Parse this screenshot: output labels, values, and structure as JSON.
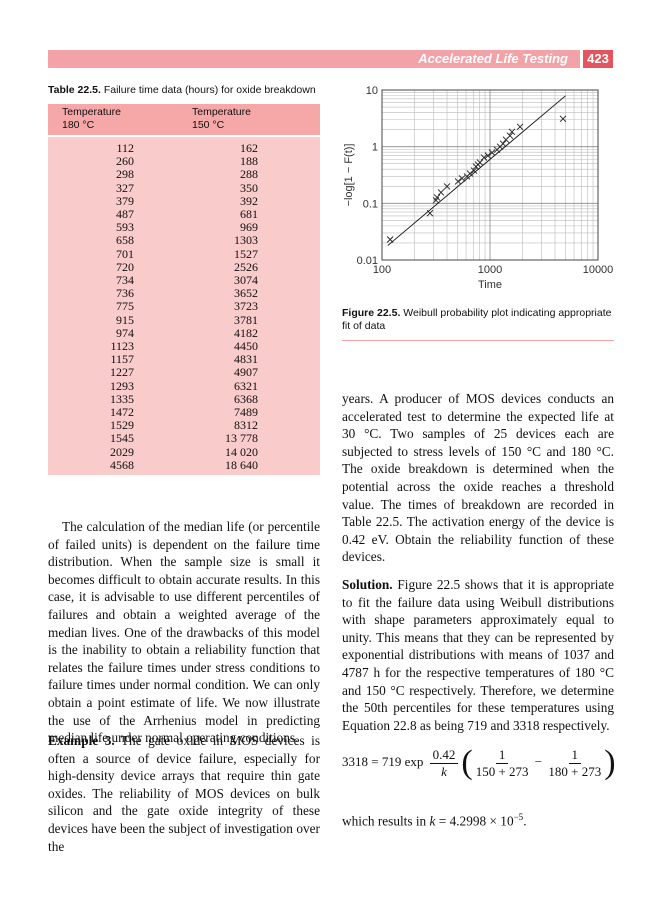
{
  "header": {
    "running_title": "Accelerated Life Testing",
    "page_number": "423"
  },
  "table": {
    "label": "Table 22.5.",
    "caption": "Failure time data (hours) for oxide breakdown",
    "columns": [
      {
        "name": "Temperature",
        "condition": "180 °C"
      },
      {
        "name": "Temperature",
        "condition": "150 °C"
      }
    ],
    "rows": [
      [
        "112",
        "162"
      ],
      [
        "260",
        "188"
      ],
      [
        "298",
        "288"
      ],
      [
        "327",
        "350"
      ],
      [
        "379",
        "392"
      ],
      [
        "487",
        "681"
      ],
      [
        "593",
        "969"
      ],
      [
        "658",
        "1303"
      ],
      [
        "701",
        "1527"
      ],
      [
        "720",
        "2526"
      ],
      [
        "734",
        "3074"
      ],
      [
        "736",
        "3652"
      ],
      [
        "775",
        "3723"
      ],
      [
        "915",
        "3781"
      ],
      [
        "974",
        "4182"
      ],
      [
        "1123",
        "4450"
      ],
      [
        "1157",
        "4831"
      ],
      [
        "1227",
        "4907"
      ],
      [
        "1293",
        "6321"
      ],
      [
        "1335",
        "6368"
      ],
      [
        "1472",
        "7489"
      ],
      [
        "1529",
        "8312"
      ],
      [
        "1545",
        "13 778"
      ],
      [
        "2029",
        "14 020"
      ],
      [
        "4568",
        "18 640"
      ]
    ]
  },
  "figure": {
    "label": "Figure 22.5.",
    "caption": "Weibull probability plot indicating appropriate fit of data",
    "chart_data": {
      "type": "scatter",
      "x_label": "Time",
      "y_label": "−log[1 − F(t)]",
      "x_log": true,
      "y_log": true,
      "grid": true,
      "xlim": [
        100,
        10000
      ],
      "xticks": [
        100,
        1000,
        10000
      ],
      "ylim": [
        0.01,
        10
      ],
      "yticks": [
        0.01,
        0.1,
        1,
        10
      ],
      "x": [
        119,
        278,
        316,
        323,
        352,
        400,
        506,
        551,
        612,
        653,
        711,
        742,
        774,
        807,
        880,
        957,
        1044,
        1161,
        1239,
        1320,
        1406,
        1531,
        1599,
        1897,
        4741
      ],
      "values": [
        0.023,
        0.067,
        0.113,
        0.127,
        0.156,
        0.199,
        0.243,
        0.275,
        0.298,
        0.336,
        0.379,
        0.446,
        0.483,
        0.524,
        0.641,
        0.695,
        0.785,
        0.886,
        1.0,
        1.13,
        1.33,
        1.56,
        1.83,
        2.24,
        3.1
      ],
      "fit_line": {
        "x": [
          113,
          5000
        ],
        "values": [
          0.018,
          7.9
        ]
      }
    }
  },
  "left_column": {
    "paragraph_1": "The calculation of the median life (or percentile of failed units) is dependent on the failure time distribution. When the sample size is small it becomes difficult to obtain accurate results. In this case, it is advisable to use different percentiles of failures and obtain a weighted average of the median lives. One of the drawbacks of this model is the inability to obtain a reliability function that relates the failure times under stress conditions to failure times under normal condition. We can only obtain a point estimate of life. We now illustrate the use of the Arrhenius model in predicting median life under normal operating conditions.",
    "example": {
      "lead": "Example 3.",
      "text": "The gate oxide in MOS devices is often a source of device failure, especially for high-density device arrays that require thin gate oxides. The reliability of MOS devices on bulk silicon and the gate oxide integrity of these devices have been the subject of investigation over the"
    }
  },
  "right_column": {
    "paragraph_1": "years. A producer of MOS devices conducts an accelerated test to determine the expected life at 30 °C. Two samples of 25 devices each are subjected to stress levels of 150 °C and 180 °C. The oxide breakdown is determined when the potential across the oxide reaches a threshold value. The times of breakdown are recorded in Table 22.5. The activation energy of the device is 0.42 eV. Obtain the reliability function of these devices.",
    "solution": {
      "lead": "Solution.",
      "text": "Figure 22.5 shows that it is appropriate to fit the failure data using Weibull distributions with shape parameters approximately equal to unity. This means that they can be represented by exponential distributions with means of 1037 and 4787 h for the respective temperatures of 180 °C and 150 °C respectively. Therefore, we determine the 50th percentiles for these temperatures using Equation 22.8 as being 719 and 3318 respectively."
    },
    "equation": {
      "lhs": "3318 = 719 exp",
      "coef_num": "0.42",
      "coef_den": "k",
      "f1_num": "1",
      "f1_den": "150 + 273",
      "minus": "−",
      "f2_num": "1",
      "f2_den": "180 + 273"
    },
    "result": {
      "text": "which results in ",
      "var": "k",
      "value": " = 4.2998 × 10",
      "exponent": "−5",
      "end": "."
    }
  }
}
